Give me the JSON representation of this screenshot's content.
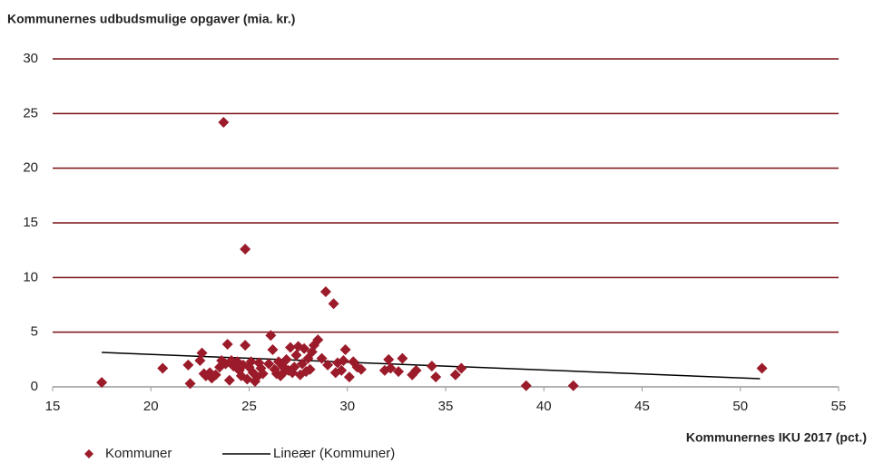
{
  "chart_data": {
    "type": "scatter",
    "title": "Kommunernes udbudsmulige opgaver (mia. kr.)",
    "x_label": "Kommunernes IKU 2017 (pct.)",
    "xlim": [
      15,
      55
    ],
    "xticks": [
      15,
      20,
      25,
      30,
      35,
      40,
      45,
      50,
      55
    ],
    "ylim": [
      0,
      30
    ],
    "yticks": [
      0,
      5,
      10,
      15,
      20,
      25,
      30
    ],
    "grid": true,
    "grid_color": "#7a0f14",
    "legend": "bottom",
    "series": [
      {
        "name": "Kommuner",
        "color": "#9b1b2a",
        "x": [
          17.5,
          20.6,
          21.9,
          22.0,
          22.5,
          22.6,
          22.7,
          22.8,
          23.0,
          23.1,
          23.3,
          23.5,
          23.6,
          23.7,
          23.8,
          23.9,
          24.0,
          24.1,
          24.2,
          24.4,
          24.5,
          24.6,
          24.7,
          24.8,
          24.8,
          24.9,
          25.0,
          25.1,
          25.2,
          25.3,
          25.4,
          25.5,
          25.6,
          25.7,
          26.0,
          26.1,
          26.2,
          26.3,
          26.4,
          26.5,
          26.6,
          26.7,
          26.8,
          26.9,
          27.0,
          27.1,
          27.2,
          27.3,
          27.4,
          27.5,
          27.6,
          27.7,
          27.8,
          27.9,
          28.0,
          28.1,
          28.2,
          28.3,
          28.5,
          28.7,
          28.9,
          29.0,
          29.3,
          29.4,
          29.5,
          29.7,
          29.8,
          29.9,
          30.1,
          30.3,
          30.5,
          30.7,
          31.9,
          32.1,
          32.2,
          32.6,
          32.8,
          33.3,
          33.5,
          34.3,
          34.5,
          35.5,
          35.8,
          39.1,
          41.5,
          51.1
        ],
        "values": [
          0.4,
          1.7,
          2.0,
          0.3,
          2.4,
          3.1,
          1.2,
          1.0,
          1.3,
          0.8,
          1.1,
          1.8,
          2.4,
          24.2,
          2.1,
          3.9,
          0.6,
          2.4,
          1.9,
          2.3,
          1.5,
          1.0,
          2.0,
          12.6,
          3.8,
          0.7,
          1.8,
          2.3,
          1.3,
          0.5,
          0.9,
          2.2,
          1.7,
          1.2,
          2.1,
          4.7,
          3.4,
          1.6,
          1.2,
          2.3,
          1.0,
          1.9,
          1.4,
          2.5,
          1.5,
          3.6,
          1.3,
          1.8,
          2.9,
          3.7,
          1.1,
          2.1,
          3.5,
          1.4,
          2.6,
          1.6,
          3.2,
          3.8,
          4.3,
          2.6,
          8.7,
          2.0,
          7.6,
          1.3,
          2.2,
          1.5,
          2.4,
          3.4,
          0.9,
          2.3,
          1.8,
          1.6,
          1.5,
          2.5,
          1.7,
          1.4,
          2.6,
          1.1,
          1.5,
          1.9,
          0.9,
          1.1,
          1.7,
          0.1,
          0.1,
          1.7
        ]
      }
    ],
    "trendline": {
      "name": "Lineær (Kommuner)",
      "color": "#000000",
      "x": [
        17.5,
        51
      ],
      "values": [
        3.15,
        0.75
      ]
    }
  }
}
